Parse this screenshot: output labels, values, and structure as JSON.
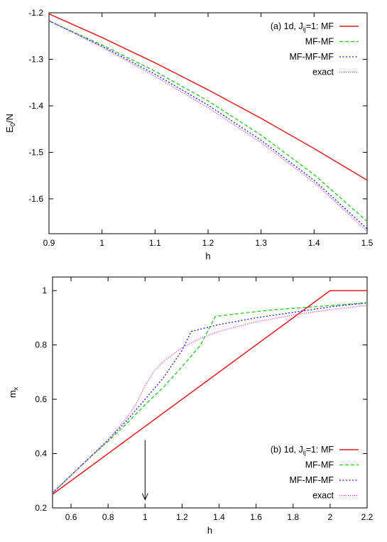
{
  "chart_data": [
    {
      "type": "line",
      "legend_title": "(a) 1d, J",
      "legend_sub": "ij",
      "legend_tail": "=1: MF",
      "xlabel": "h",
      "ylabel_main": "E",
      "ylabel_sub": "0",
      "ylabel_tail": "/N",
      "xlim": [
        0.9,
        1.5
      ],
      "ylim": [
        -1.675,
        -1.2
      ],
      "xticks": [
        "0.9",
        "1",
        "1.1",
        "1.2",
        "1.3",
        "1.4",
        "1.5"
      ],
      "yticks": [
        "-1.2",
        "-1.3",
        "-1.4",
        "-1.5",
        "-1.6"
      ],
      "x": [
        0.9,
        1.0,
        1.1,
        1.2,
        1.3,
        1.4,
        1.5
      ],
      "series": [
        {
          "name": "MF",
          "color": "#e41a1c",
          "dash": "",
          "values": [
            -1.2025,
            -1.2531,
            -1.3075,
            -1.3655,
            -1.427,
            -1.4919,
            -1.56
          ]
        },
        {
          "name": "MF-MF",
          "color": "#1fc81f",
          "dash": "5,3",
          "values": [
            -1.218,
            -1.269,
            -1.3255,
            -1.3895,
            -1.463,
            -1.548,
            -1.6485
          ]
        },
        {
          "name": "MF-MF-MF",
          "color": "#1b1bdd",
          "dash": "2,2.5",
          "values": [
            -1.217,
            -1.272,
            -1.332,
            -1.3985,
            -1.474,
            -1.56,
            -1.6645
          ]
        },
        {
          "name": "exact",
          "color": "#dd22dd",
          "dash": "1,2",
          "values": [
            -1.217,
            -1.274,
            -1.3365,
            -1.404,
            -1.479,
            -1.5645,
            -1.67
          ]
        }
      ]
    },
    {
      "type": "line",
      "legend_title": "(b) 1d, J",
      "legend_sub": "ij",
      "legend_tail": "=1: MF",
      "xlabel": "h",
      "ylabel_main": "m",
      "ylabel_sub": "x",
      "ylabel_tail": "",
      "xlim": [
        0.5,
        2.2
      ],
      "ylim": [
        0.2,
        1.05
      ],
      "xticks": [
        "0.6",
        "0.8",
        "1",
        "1.2",
        "1.4",
        "1.6",
        "1.8",
        "2",
        "2.2"
      ],
      "yticks": [
        "0.2",
        "0.4",
        "0.6",
        "0.8",
        "1"
      ],
      "annotation_arrow": {
        "x": 1.0,
        "y_from": 0.45,
        "y_to": 0.23
      },
      "series": [
        {
          "name": "MF",
          "color": "#e41a1c",
          "dash": "",
          "x": [
            0.5,
            2.0,
            2.2
          ],
          "values": [
            0.25,
            1.0,
            1.0
          ]
        },
        {
          "name": "MF-MF",
          "color": "#1fc81f",
          "dash": "5,3",
          "x": [
            0.5,
            0.6,
            0.7,
            0.8,
            0.9,
            1.0,
            1.1,
            1.2,
            1.3,
            1.38,
            1.5,
            1.7,
            1.9,
            2.1,
            2.2
          ],
          "values": [
            0.255,
            0.32,
            0.385,
            0.445,
            0.51,
            0.58,
            0.645,
            0.72,
            0.8,
            0.905,
            0.915,
            0.93,
            0.94,
            0.95,
            0.955
          ]
        },
        {
          "name": "MF-MF-MF",
          "color": "#1b1bdd",
          "dash": "2,2.5",
          "x": [
            0.5,
            0.6,
            0.7,
            0.8,
            0.9,
            1.0,
            1.1,
            1.2,
            1.25,
            1.4,
            1.6,
            1.8,
            2.0,
            2.2
          ],
          "values": [
            0.255,
            0.32,
            0.385,
            0.45,
            0.52,
            0.6,
            0.68,
            0.78,
            0.85,
            0.875,
            0.9,
            0.92,
            0.94,
            0.955
          ]
        },
        {
          "name": "exact",
          "color": "#dd22dd",
          "dash": "1,2",
          "x": [
            0.5,
            0.6,
            0.7,
            0.8,
            0.9,
            0.95,
            1.0,
            1.05,
            1.1,
            1.2,
            1.3,
            1.4,
            1.6,
            1.8,
            2.0,
            2.2
          ],
          "values": [
            0.255,
            0.32,
            0.385,
            0.45,
            0.53,
            0.58,
            0.65,
            0.705,
            0.74,
            0.79,
            0.825,
            0.85,
            0.885,
            0.91,
            0.93,
            0.945
          ]
        }
      ]
    }
  ]
}
